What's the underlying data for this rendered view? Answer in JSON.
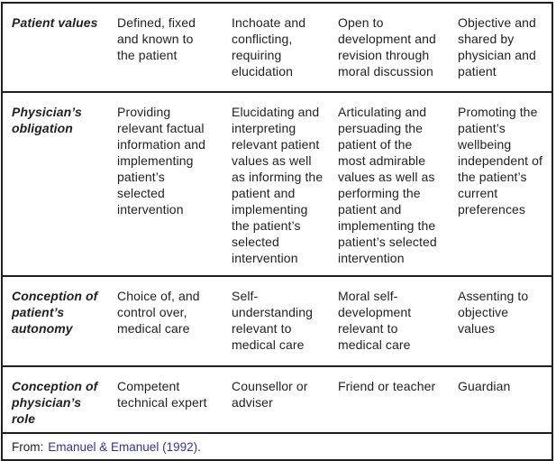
{
  "colors": {
    "text": "#1f1f1f",
    "border": "#1f1f1f",
    "citation_link": "#32329e",
    "background": "#ffffff"
  },
  "table": {
    "rows": [
      {
        "header": "Patient values",
        "cells": [
          "Defined, fixed\nand known to\nthe patient",
          "Inchoate and\nconflicting,\nrequiring\nelucidation",
          "Open to\ndevelopment and\nrevision through\nmoral discussion",
          "Objective and\nshared by\nphysician and\npatient"
        ]
      },
      {
        "header": "Physician’s\nobligation",
        "cells": [
          "Providing\nrelevant factual\ninformation and\nimplementing\npatient’s\nselected\nintervention",
          "Elucidating and\ninterpreting\nrelevant patient\nvalues as well\nas informing the\npatient and\nimplementing\nthe patient’s\nselected\nintervention",
          "Articulating and\npersuading the\npatient of the\nmost admirable\nvalues as well as\nperforming the\npatient and\nimplementing the\npatient’s selected\nintervention",
          "Promoting the\npatient’s\nwellbeing\nindependent of\nthe patient’s\ncurrent\npreferences"
        ]
      },
      {
        "header": "Conception of\npatient’s\nautonomy",
        "cells": [
          "Choice of, and\ncontrol over,\nmedical care",
          "Self-\nunderstanding\nrelevant to\nmedical care",
          "Moral self-\ndevelopment\nrelevant to\nmedical care",
          "Assenting to\nobjective values"
        ]
      },
      {
        "header": "Conception of\nphysician’s role",
        "cells": [
          "Competent\ntechnical expert",
          "Counsellor or\nadviser",
          "Friend or teacher",
          "Guardian"
        ]
      }
    ],
    "footer": {
      "prefix": "From:",
      "citation": "Emanuel & Emanuel (1992)."
    }
  }
}
